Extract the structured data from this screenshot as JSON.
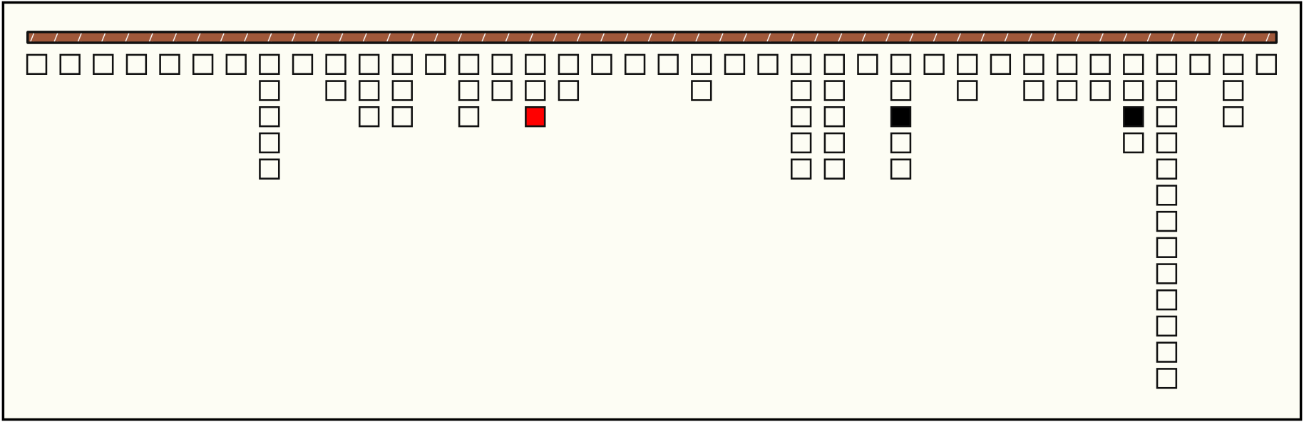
{
  "columns": [
    1,
    1,
    1,
    1,
    1,
    1,
    1,
    5,
    1,
    2,
    3,
    3,
    1,
    3,
    2,
    3,
    2,
    1,
    1,
    1,
    2,
    1,
    1,
    5,
    5,
    1,
    5,
    1,
    2,
    1,
    2,
    2,
    2,
    4,
    13,
    1,
    3,
    1
  ],
  "special_cells": [
    {
      "column": 15,
      "row": 2,
      "color": "#ff0000"
    },
    {
      "column": 26,
      "row": 2,
      "color": "#000000"
    },
    {
      "column": 33,
      "row": 2,
      "color": "#000000"
    }
  ]
}
